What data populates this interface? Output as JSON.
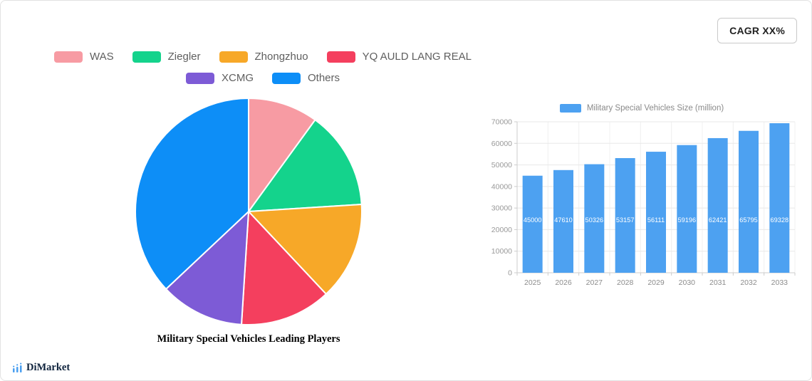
{
  "header": {
    "cagr_label": "CAGR XX%"
  },
  "footer": {
    "brand": "DiMarket"
  },
  "chart_data": [
    {
      "type": "pie",
      "title": "Military Special Vehicles Leading Players",
      "legend_position": "top",
      "segments": [
        {
          "label": "WAS",
          "value": 10,
          "color": "#f79ba3"
        },
        {
          "label": "Ziegler",
          "value": 14,
          "color": "#14d38c"
        },
        {
          "label": "Zhongzhuo",
          "value": 14,
          "color": "#f7a828"
        },
        {
          "label": "YQ AULD LANG REAL",
          "value": 13,
          "color": "#f43f5e"
        },
        {
          "label": "XCMG",
          "value": 12,
          "color": "#7d5bd6"
        },
        {
          "label": "Others",
          "value": 37,
          "color": "#0d8ef7"
        }
      ]
    },
    {
      "type": "bar",
      "legend": "Military Special Vehicles Size (million)",
      "legend_position": "top",
      "categories": [
        "2025",
        "2026",
        "2027",
        "2028",
        "2029",
        "2030",
        "2031",
        "2032",
        "2033"
      ],
      "values": [
        45000,
        47610,
        50326,
        53157,
        56111,
        59196,
        62421,
        65795,
        69328
      ],
      "bar_color": "#4da1f1",
      "ylim": [
        0,
        70000
      ],
      "ytick_interval": 10000,
      "yticks": [
        0,
        10000,
        20000,
        30000,
        40000,
        50000,
        60000,
        70000
      ],
      "grid": true,
      "value_labels": true
    }
  ]
}
